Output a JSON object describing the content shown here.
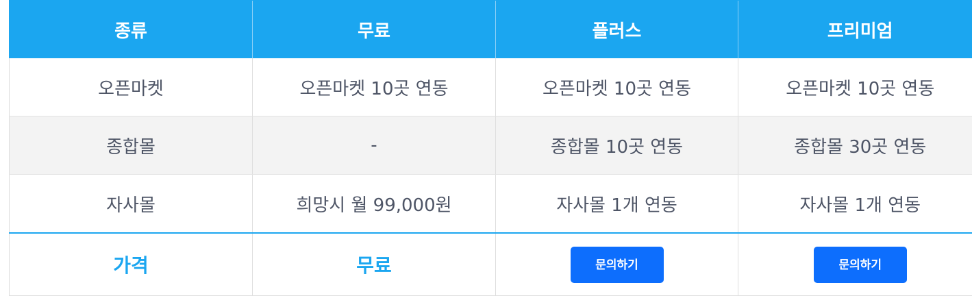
{
  "header": {
    "columns": [
      "종류",
      "무료",
      "플러스",
      "프리미엄"
    ]
  },
  "rows": [
    {
      "cells": [
        "오픈마켓",
        "오픈마켓 10곳 연동",
        "오픈마켓 10곳 연동",
        "오픈마켓 10곳 연동"
      ]
    },
    {
      "cells": [
        "종합몰",
        "-",
        "종합몰 10곳 연동",
        "종합몰 30곳 연동"
      ]
    },
    {
      "cells": [
        "자사몰",
        "희망시 월 99,000원",
        "자사몰 1개 연동",
        "자사몰 1개 연동"
      ]
    }
  ],
  "footer": {
    "label": "가격",
    "free_price": "무료",
    "plus_button": "문의하기",
    "premium_button": "문의하기"
  },
  "colors": {
    "header_bg": "#1ba6f0",
    "accent": "#1ba6f0",
    "button_bg": "#0d6efd",
    "alt_row_bg": "#f3f3f3"
  }
}
